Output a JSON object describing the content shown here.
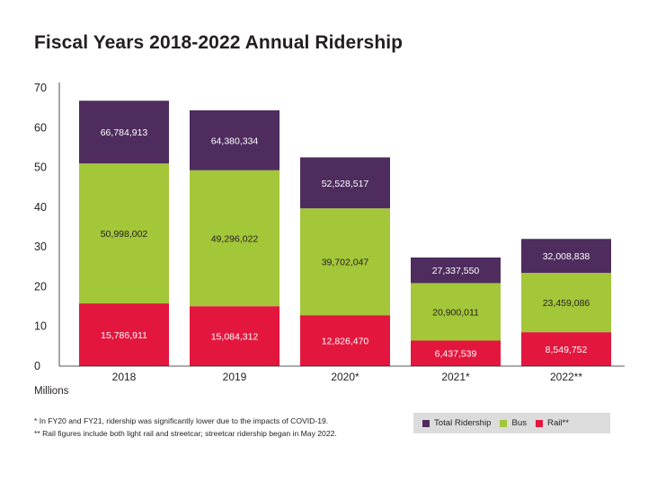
{
  "chart_data": {
    "type": "bar",
    "title": "Fiscal Years 2018-2022 Annual Ridership",
    "ylabel": "Millions",
    "xlabel": "",
    "ylim": [
      0,
      70
    ],
    "yticks": [
      0,
      10,
      20,
      30,
      40,
      50,
      60,
      70
    ],
    "categories": [
      "2018",
      "2019",
      "2020*",
      "2021*",
      "2022**"
    ],
    "series": [
      {
        "name": "Rail**",
        "color": "#e3173e",
        "values": [
          15.786911,
          15.084312,
          12.82647,
          6.437539,
          8.549752
        ],
        "labels": [
          "15,786,911",
          "15,084,312",
          "12,826,470",
          "6,437,539",
          "8,549,752"
        ]
      },
      {
        "name": "Bus",
        "color": "#a4c639",
        "values": [
          50.998002,
          49.296022,
          39.702047,
          20.900011,
          23.459086
        ],
        "labels": [
          "50,998,002",
          "49,296,022",
          "39,702,047",
          "20,900,011",
          "23,459,086"
        ]
      },
      {
        "name": "Total Ridership",
        "color": "#4f2c5e",
        "values": [
          66.784913,
          64.380334,
          52.528517,
          27.33755,
          32.008838
        ],
        "labels": [
          "66,784,913",
          "64,380,334",
          "52,528,517",
          "27,337,550",
          "32,008,838"
        ]
      }
    ],
    "legend": [
      "Total Ridership",
      "Bus",
      "Rail**"
    ],
    "legend_position": "bottom-right"
  },
  "footnotes": [
    "*   In FY20 and FY21, ridership was significantly lower due to the impacts of COVID-19.",
    "** Rail figures include both light rail and streetcar; streetcar ridership began in May 2022."
  ]
}
